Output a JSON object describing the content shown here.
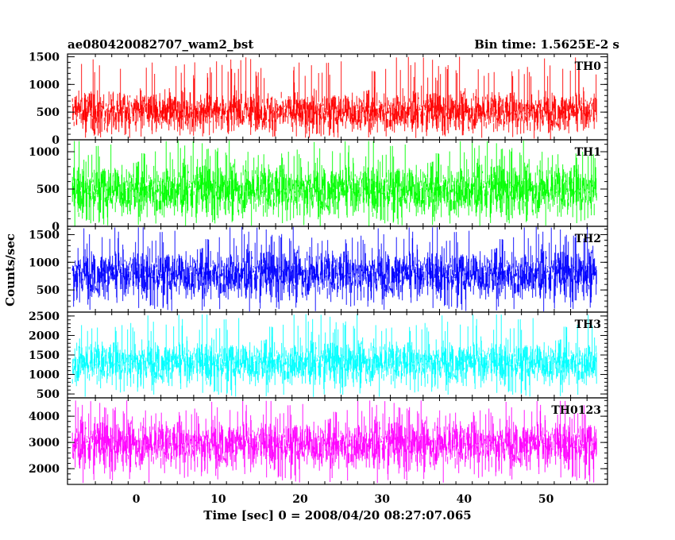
{
  "header": {
    "title": "ae080420082707_wam2_bst",
    "bin_time": "Bin time: 1.5625E-2 s"
  },
  "chart_data": {
    "type": "line",
    "title": "ae080420082707_wam2_bst",
    "subtitle": "Bin time: 1.5625E-2 s",
    "xlabel": "Time [sec] 0 = 2008/04/20 08:27:07.065",
    "ylabel": "Counts/sec",
    "xlim": [
      -8.4,
      57.5
    ],
    "data_x_range": [
      -7.8,
      56.2
    ],
    "xticks": [
      0,
      10,
      20,
      30,
      40,
      50
    ],
    "bin_time_s": 0.015625,
    "panels": [
      {
        "name": "TH0",
        "color": "#ff0000",
        "ylim": [
          0,
          1550
        ],
        "yticks": [
          0,
          500,
          1000,
          1500
        ],
        "typical_range": [
          30,
          1500
        ],
        "core_range": [
          160,
          880
        ],
        "mean": 520
      },
      {
        "name": "TH1",
        "color": "#00ff00",
        "ylim": [
          0,
          1160
        ],
        "yticks": [
          0,
          500,
          1000
        ],
        "typical_range": [
          5,
          1150
        ],
        "core_range": [
          150,
          850
        ],
        "mean": 500
      },
      {
        "name": "TH2",
        "color": "#0000ff",
        "ylim": [
          100,
          1650
        ],
        "yticks": [
          500,
          1000,
          1500
        ],
        "typical_range": [
          110,
          1640
        ],
        "core_range": [
          380,
          1250
        ],
        "mean": 800
      },
      {
        "name": "TH3",
        "color": "#00ffff",
        "ylim": [
          400,
          2600
        ],
        "yticks": [
          500,
          1000,
          1500,
          2000,
          2500
        ],
        "typical_range": [
          420,
          2550
        ],
        "core_range": [
          800,
          1900
        ],
        "mean": 1320
      },
      {
        "name": "TH0123",
        "color": "#ff00ff",
        "ylim": [
          1400,
          4700
        ],
        "yticks": [
          2000,
          3000,
          4000
        ],
        "typical_range": [
          1450,
          4600
        ],
        "core_range": [
          2100,
          3900
        ],
        "mean": 2960
      }
    ]
  }
}
